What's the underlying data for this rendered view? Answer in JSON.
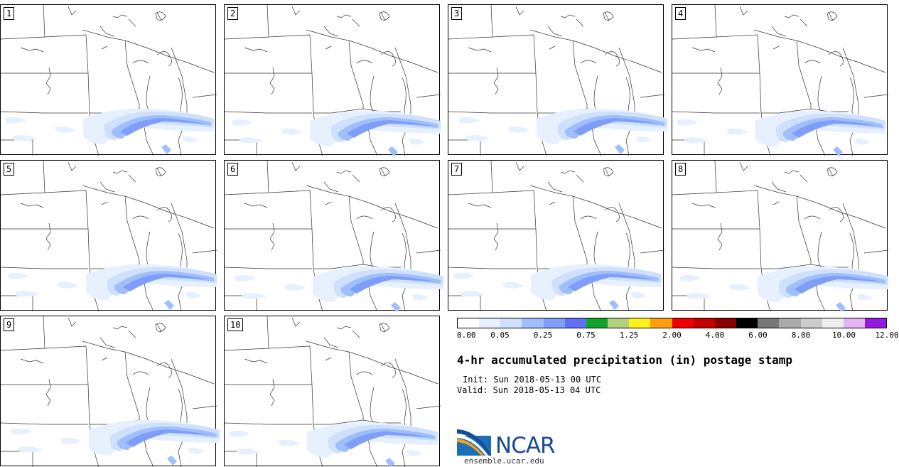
{
  "panels": [
    {
      "label": "1"
    },
    {
      "label": "2"
    },
    {
      "label": "3"
    },
    {
      "label": "4"
    },
    {
      "label": "5"
    },
    {
      "label": "6"
    },
    {
      "label": "7"
    },
    {
      "label": "8"
    },
    {
      "label": "9"
    },
    {
      "label": "10"
    }
  ],
  "colorbar": {
    "colors": [
      "#ffffff",
      "#e6f0fe",
      "#cfe0fd",
      "#9fbefb",
      "#7f9ef9",
      "#6270f4",
      "#12a12a",
      "#b3d27e",
      "#fff11c",
      "#fba10f",
      "#f00000",
      "#c20000",
      "#860000",
      "#000000",
      "#777777",
      "#aaaaaa",
      "#cccccc",
      "#eeeeee",
      "#e4b3f2",
      "#9319e0"
    ],
    "tick_labels": [
      "0.00",
      "0.05",
      "0.25",
      "0.75",
      "1.25",
      "2.00",
      "4.00",
      "6.00",
      "8.00",
      "10.00",
      "12.00"
    ]
  },
  "title": "4-hr accumulated precipitation (in) postage stamp",
  "init_line": "Init: Sun 2018-05-13 00 UTC",
  "valid_line": "Valid: Sun 2018-05-13 04 UTC",
  "logo": {
    "text": "NCAR",
    "url": "ensemble.ucar.edu"
  }
}
